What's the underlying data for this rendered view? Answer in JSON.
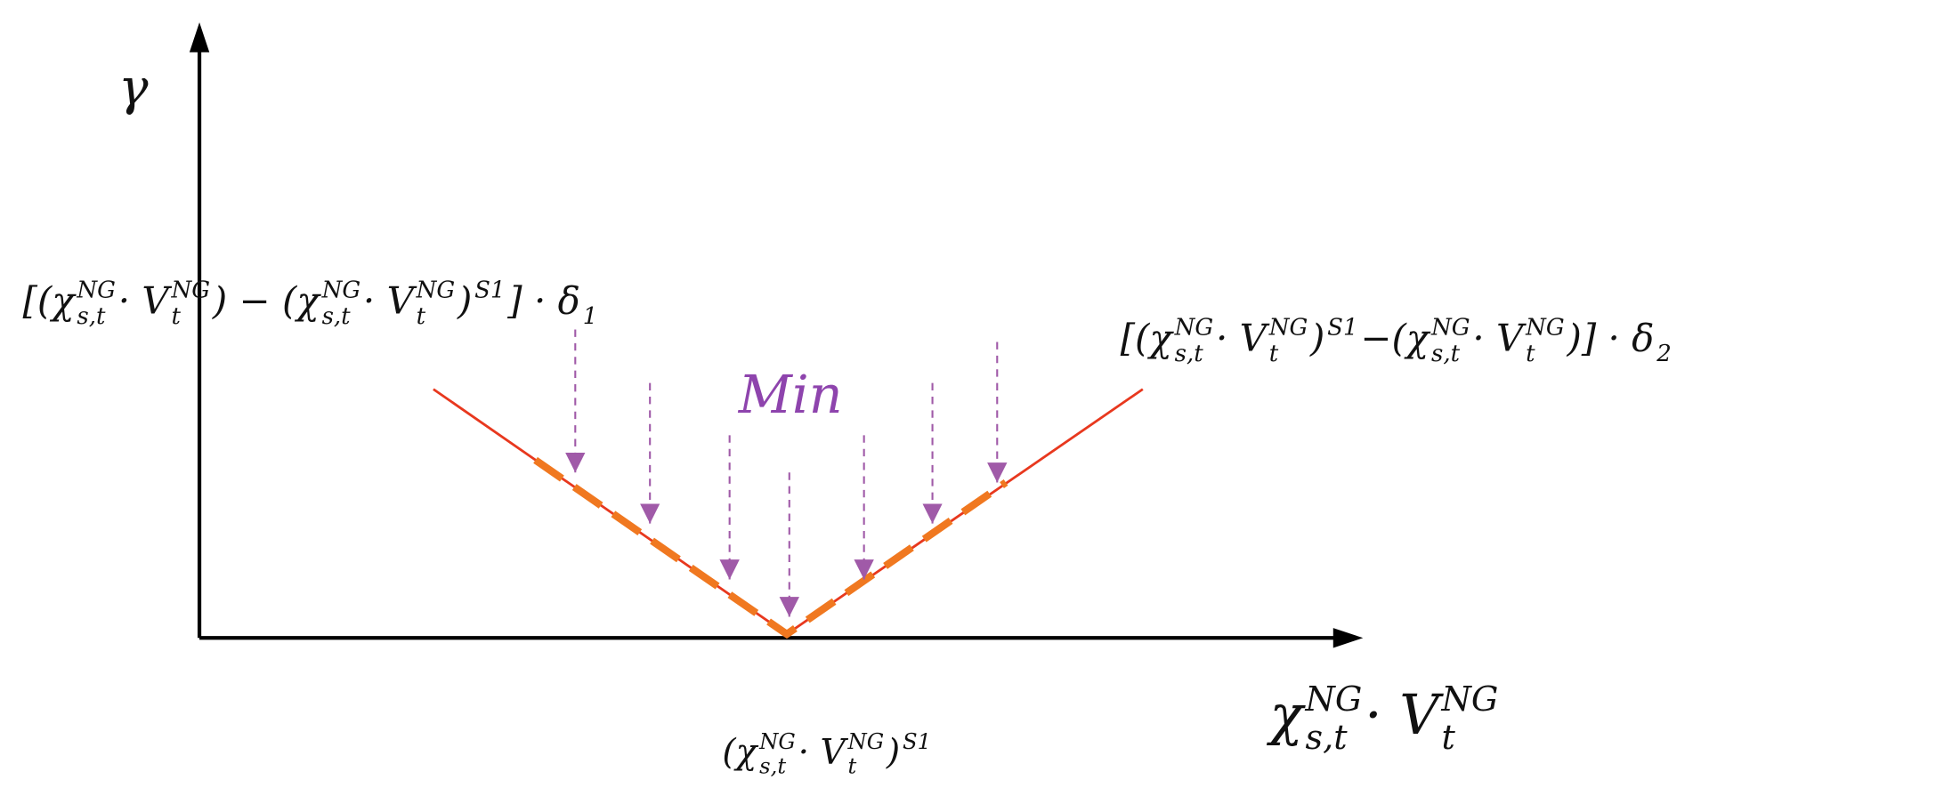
{
  "y_axis_label": "γ",
  "x_axis_label": [
    {
      "base": "χ",
      "sup": "NG",
      "sub": "s,t"
    },
    {
      "base": " · V",
      "sup": "NG",
      "sub": "t"
    }
  ],
  "left_formula": [
    {
      "base": "[(χ",
      "sup": "NG",
      "sub": "s,t"
    },
    {
      "base": " · V",
      "sup": "NG",
      "sub": "t"
    },
    {
      "base": ") − (χ",
      "sup": "NG",
      "sub": "s,t"
    },
    {
      "base": " · V",
      "sup": "NG",
      "sub": "t"
    },
    {
      "base": ")",
      "sup": "S1"
    },
    {
      "base": "] · δ",
      "sub": "1"
    }
  ],
  "right_formula": [
    {
      "base": "[(χ",
      "sup": "NG",
      "sub": "s,t"
    },
    {
      "base": " · V",
      "sup": "NG",
      "sub": "t"
    },
    {
      "base": ")",
      "sup": "S1"
    },
    {
      "base": "−(χ",
      "sup": "NG",
      "sub": "s,t"
    },
    {
      "base": " · V",
      "sup": "NG",
      "sub": "t"
    },
    {
      "base": ")] · δ",
      "sub": "2"
    }
  ],
  "min_label": "Min",
  "vertex_label": [
    {
      "base": "(χ",
      "sup": "NG",
      "sub": "s,t"
    },
    {
      "base": " · V",
      "sup": "NG",
      "sub": "t"
    },
    {
      "base": ")",
      "sup": "S1"
    }
  ]
}
